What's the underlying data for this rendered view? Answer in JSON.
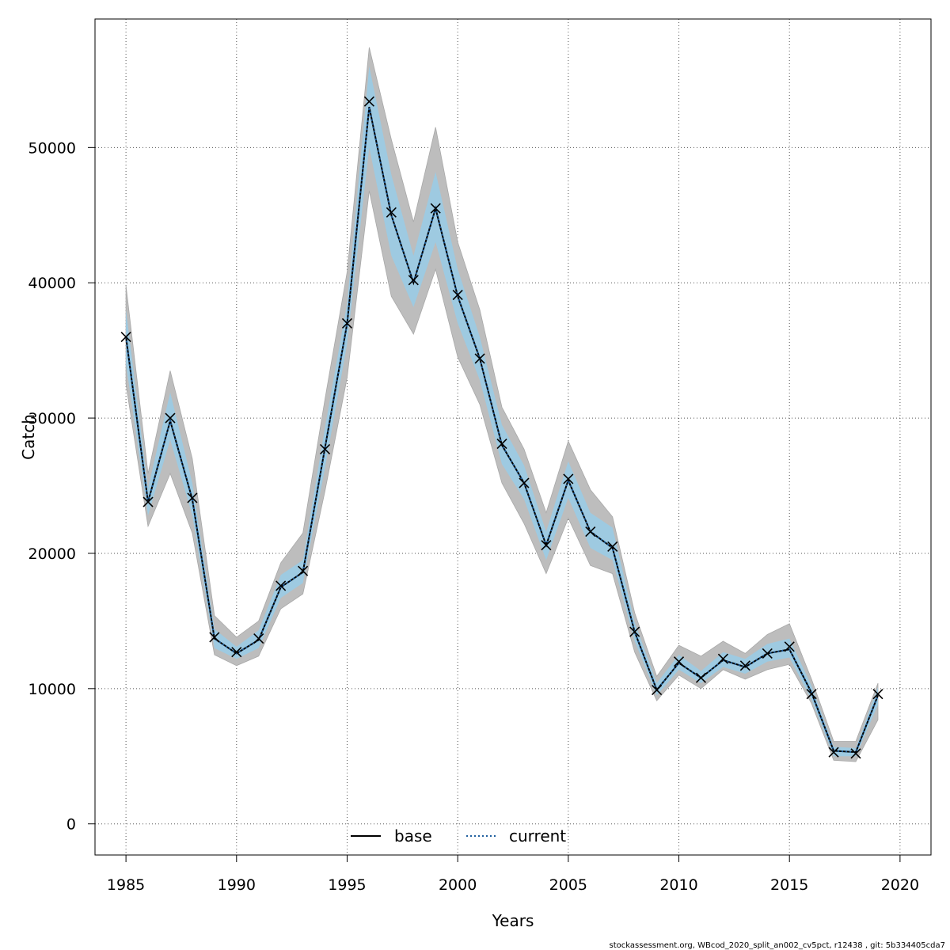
{
  "chart_data": {
    "type": "line",
    "title": "",
    "xlabel": "Years",
    "ylabel": "Catch",
    "xlim": [
      1983.6,
      2021.4
    ],
    "ylim": [
      -2300,
      59500
    ],
    "x_ticks": [
      1985,
      1990,
      1995,
      2000,
      2005,
      2010,
      2015,
      2020
    ],
    "y_ticks": [
      0,
      10000,
      20000,
      30000,
      40000,
      50000
    ],
    "grid": true,
    "legend_position": "bottom-center",
    "colors": {
      "outer_band": "#bdbdbd",
      "inner_band": "#9ecae1",
      "base_line": "#000000",
      "current_line": "#1f5f9e",
      "observed_marker": "#000000"
    },
    "series": [
      {
        "name": "base",
        "style": "solid",
        "x": [
          1985,
          1986,
          1987,
          1988,
          1989,
          1990,
          1991,
          1992,
          1993,
          1994,
          1995,
          1996,
          1997,
          1998,
          1999,
          2000,
          2001,
          2002,
          2003,
          2004,
          2005,
          2006,
          2007,
          2008,
          2009,
          2010,
          2011,
          2012,
          2013,
          2014,
          2015,
          2016,
          2017,
          2018,
          2019
        ],
        "y": [
          36000,
          23800,
          29800,
          24000,
          13700,
          12600,
          13600,
          17500,
          18600,
          27800,
          37000,
          53000,
          45000,
          40000,
          45500,
          39000,
          34400,
          28000,
          25200,
          20600,
          25400,
          21600,
          20400,
          14200,
          9900,
          11900,
          10800,
          12100,
          11600,
          12600,
          12900,
          9700,
          5400,
          5300,
          9500
        ],
        "inner_lower": [
          34000,
          22800,
          28400,
          22800,
          13000,
          12200,
          13000,
          16700,
          17800,
          26300,
          35500,
          50000,
          42000,
          38200,
          43000,
          37000,
          32800,
          26600,
          24000,
          19500,
          24100,
          20400,
          19500,
          13500,
          9500,
          11400,
          10400,
          11600,
          11100,
          12000,
          12300,
          9200,
          5000,
          5000,
          8800
        ],
        "inner_upper": [
          38000,
          24800,
          31900,
          25200,
          14400,
          13100,
          14300,
          18400,
          19500,
          29300,
          38500,
          56000,
          48000,
          42000,
          48200,
          41000,
          36000,
          29500,
          26500,
          21600,
          26800,
          23000,
          21900,
          14900,
          10400,
          12500,
          11300,
          12700,
          12200,
          13300,
          13700,
          10200,
          5700,
          5600,
          10100
        ],
        "outer_lower": [
          32500,
          22000,
          25900,
          21500,
          12500,
          11700,
          12400,
          15900,
          17000,
          24600,
          33000,
          46800,
          39000,
          36200,
          41000,
          34500,
          31000,
          25200,
          22200,
          18500,
          22600,
          19100,
          18500,
          12700,
          9100,
          11000,
          10000,
          11400,
          10700,
          11400,
          11800,
          8900,
          4700,
          4600,
          7700
        ],
        "outer_upper": [
          39800,
          25900,
          33500,
          27000,
          15400,
          13800,
          15000,
          19300,
          21500,
          31400,
          40800,
          57400,
          50600,
          44500,
          51500,
          43000,
          38000,
          30800,
          27700,
          23000,
          28300,
          24700,
          22700,
          15600,
          10900,
          13200,
          12400,
          13500,
          12600,
          14000,
          14800,
          10700,
          6100,
          6100,
          10400
        ]
      },
      {
        "name": "current",
        "style": "dotted",
        "x": [
          1985,
          1986,
          1987,
          1988,
          1989,
          1990,
          1991,
          1992,
          1993,
          1994,
          1995,
          1996,
          1997,
          1998,
          1999,
          2000,
          2001,
          2002,
          2003,
          2004,
          2005,
          2006,
          2007,
          2008,
          2009,
          2010,
          2011,
          2012,
          2013,
          2014,
          2015,
          2016,
          2017,
          2018,
          2019
        ],
        "y": [
          36000,
          23800,
          29800,
          24000,
          13700,
          12600,
          13600,
          17500,
          18600,
          27800,
          37000,
          53000,
          45000,
          40000,
          45500,
          39000,
          34400,
          28000,
          25200,
          20600,
          25400,
          21600,
          20400,
          14200,
          9900,
          11900,
          10800,
          12100,
          11600,
          12600,
          12900,
          9700,
          5400,
          5300,
          9500
        ]
      }
    ],
    "observations": {
      "marker": "x",
      "x": [
        1985,
        1986,
        1987,
        1988,
        1989,
        1990,
        1991,
        1992,
        1993,
        1994,
        1995,
        1996,
        1997,
        1998,
        1999,
        2000,
        2001,
        2002,
        2003,
        2004,
        2005,
        2006,
        2007,
        2008,
        2009,
        2010,
        2011,
        2012,
        2013,
        2014,
        2015,
        2016,
        2017,
        2018,
        2019
      ],
      "y": [
        36000,
        23800,
        30000,
        24100,
        13800,
        12700,
        13700,
        17600,
        18700,
        27700,
        37000,
        53400,
        45200,
        40200,
        45500,
        39100,
        34400,
        28100,
        25200,
        20600,
        25500,
        21600,
        20500,
        14200,
        9900,
        12000,
        10800,
        12200,
        11700,
        12600,
        13100,
        9600,
        5300,
        5200,
        9600
      ]
    },
    "footer_note": "stockassessment.org, WBcod_2020_split_an002_cv5pct, r12438 , git: 5b334405cda7"
  }
}
